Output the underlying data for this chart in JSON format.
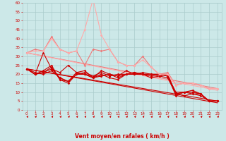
{
  "title": "",
  "xlabel": "Vent moyen/en rafales ( km/h )",
  "ylabel": "",
  "xlim": [
    -0.5,
    23.5
  ],
  "ylim": [
    0,
    60
  ],
  "yticks": [
    0,
    5,
    10,
    15,
    20,
    25,
    30,
    35,
    40,
    45,
    50,
    55,
    60
  ],
  "xticks": [
    0,
    1,
    2,
    3,
    4,
    5,
    6,
    7,
    8,
    9,
    10,
    11,
    12,
    13,
    14,
    15,
    16,
    17,
    18,
    19,
    20,
    21,
    22,
    23
  ],
  "bg_color": "#cce8e8",
  "grid_color": "#aacccc",
  "tick_color": "#cc0000",
  "series": [
    {
      "x": [
        0,
        1,
        2,
        3,
        4,
        5,
        6,
        7,
        8,
        9,
        10,
        11,
        12,
        13,
        14,
        15,
        16,
        17,
        18,
        19,
        20,
        21,
        22,
        23
      ],
      "y": [
        23,
        20,
        22,
        25,
        17,
        15,
        20,
        21,
        19,
        19,
        20,
        18,
        20,
        21,
        20,
        19,
        20,
        19,
        8,
        10,
        10,
        9,
        5,
        5
      ],
      "color": "#cc0000",
      "lw": 0.8,
      "marker": "D",
      "ms": 1.8
    },
    {
      "x": [
        0,
        1,
        2,
        3,
        4,
        5,
        6,
        7,
        8,
        9,
        10,
        11,
        12,
        13,
        14,
        15,
        16,
        17,
        18,
        19,
        20,
        21,
        22,
        23
      ],
      "y": [
        23,
        20,
        21,
        24,
        17,
        16,
        20,
        20,
        18,
        22,
        20,
        19,
        22,
        20,
        20,
        20,
        19,
        20,
        9,
        10,
        11,
        9,
        5,
        5
      ],
      "color": "#cc0000",
      "lw": 0.8,
      "marker": "D",
      "ms": 1.8
    },
    {
      "x": [
        0,
        1,
        2,
        3,
        4,
        5,
        6,
        7,
        8,
        9,
        10,
        11,
        12,
        13,
        14,
        15,
        16,
        17,
        18,
        19,
        20,
        21,
        22,
        23
      ],
      "y": [
        23,
        21,
        20,
        22,
        18,
        16,
        21,
        20,
        19,
        21,
        19,
        20,
        20,
        20,
        21,
        20,
        20,
        19,
        10,
        10,
        10,
        9,
        5,
        5
      ],
      "color": "#cc0000",
      "lw": 0.8,
      "marker": "D",
      "ms": 1.8
    },
    {
      "x": [
        0,
        1,
        2,
        3,
        4,
        5,
        6,
        7,
        8,
        9,
        10,
        11,
        12,
        13,
        14,
        15,
        16,
        17,
        18,
        19,
        20,
        21,
        22,
        23
      ],
      "y": [
        23,
        20,
        21,
        23,
        18,
        16,
        20,
        20,
        18,
        19,
        20,
        19,
        20,
        21,
        20,
        20,
        20,
        20,
        9,
        10,
        9,
        9,
        5,
        5
      ],
      "color": "#cc0000",
      "lw": 0.8,
      "marker": "D",
      "ms": 1.8
    },
    {
      "x": [
        0,
        1,
        2,
        3,
        4,
        5,
        6,
        7,
        8,
        9,
        10,
        11,
        12,
        13,
        14,
        15,
        16,
        17,
        18,
        19,
        20,
        21,
        22,
        23
      ],
      "y": [
        23,
        20,
        32,
        23,
        21,
        25,
        21,
        22,
        18,
        20,
        18,
        17,
        20,
        20,
        20,
        18,
        19,
        18,
        9,
        8,
        9,
        8,
        5,
        5
      ],
      "color": "#cc0000",
      "lw": 0.8,
      "marker": "D",
      "ms": 1.8
    },
    {
      "x": [
        0,
        1,
        2,
        3,
        4,
        5,
        6,
        7,
        8,
        9,
        10,
        11,
        12,
        13,
        14,
        15,
        16,
        17,
        18,
        19,
        20,
        21,
        22,
        23
      ],
      "y": [
        32,
        34,
        33,
        41,
        34,
        32,
        33,
        25,
        34,
        33,
        34,
        27,
        25,
        25,
        30,
        24,
        20,
        21,
        14,
        15,
        15,
        14,
        12,
        12
      ],
      "color": "#ee7777",
      "lw": 0.8,
      "marker": "D",
      "ms": 1.8
    },
    {
      "x": [
        0,
        1,
        2,
        3,
        4,
        5,
        6,
        7,
        8,
        9,
        10,
        11,
        12,
        13,
        14,
        15,
        16,
        17,
        18,
        19,
        20,
        21,
        22,
        23
      ],
      "y": [
        32,
        33,
        33,
        40,
        34,
        32,
        33,
        45,
        62,
        42,
        34,
        27,
        25,
        25,
        28,
        24,
        20,
        20,
        14,
        15,
        15,
        14,
        12,
        12
      ],
      "color": "#ffaaaa",
      "lw": 0.8,
      "marker": "D",
      "ms": 1.8
    }
  ],
  "reg_lines": [
    {
      "x": [
        0,
        23
      ],
      "y": [
        23,
        5
      ],
      "color": "#cc0000",
      "lw": 0.8
    },
    {
      "x": [
        0,
        23
      ],
      "y": [
        23,
        4
      ],
      "color": "#cc0000",
      "lw": 0.8
    },
    {
      "x": [
        0,
        23
      ],
      "y": [
        32,
        12
      ],
      "color": "#ee7777",
      "lw": 0.8
    },
    {
      "x": [
        0,
        23
      ],
      "y": [
        32,
        11
      ],
      "color": "#ffaaaa",
      "lw": 0.8
    }
  ],
  "arrow_color": "#cc0000",
  "n_arrows": 24
}
